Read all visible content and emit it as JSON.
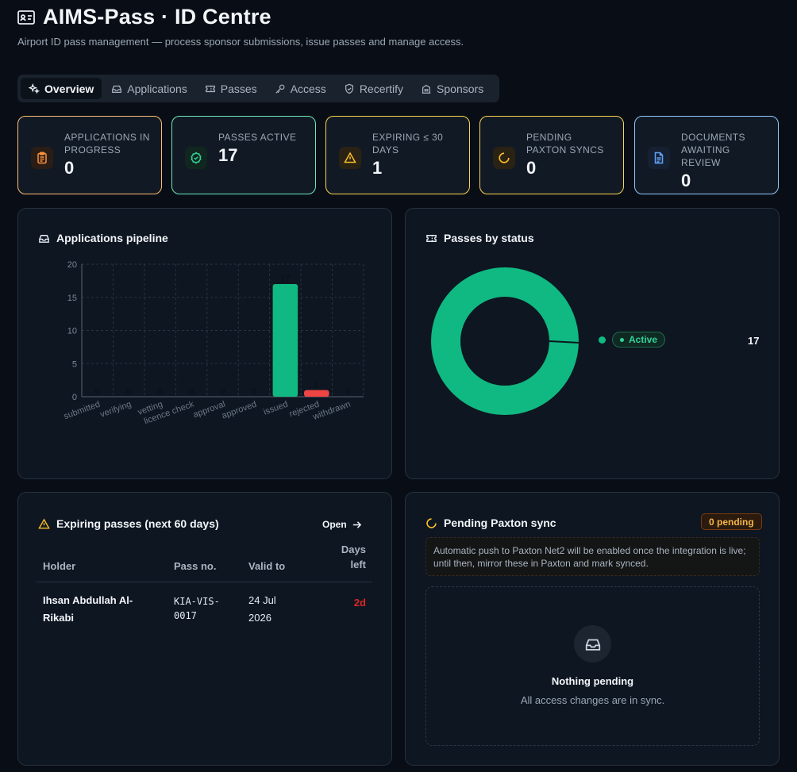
{
  "header": {
    "title": "AIMS-Pass · ID Centre",
    "subtitle": "Airport ID pass management — process sponsor submissions, issue passes and manage access."
  },
  "tabs": [
    {
      "label": "Overview",
      "icon": "sparkles-icon",
      "active": true
    },
    {
      "label": "Applications",
      "icon": "inbox-icon"
    },
    {
      "label": "Passes",
      "icon": "ticket-icon"
    },
    {
      "label": "Access",
      "icon": "key-icon"
    },
    {
      "label": "Recertify",
      "icon": "shield-check-icon"
    },
    {
      "label": "Sponsors",
      "icon": "building-icon"
    }
  ],
  "kpis": [
    {
      "label": "APPLICATIONS IN PROGRESS",
      "value": "0",
      "icon": "clipboard-icon",
      "color": "#fdba74"
    },
    {
      "label": "PASSES ACTIVE",
      "value": "17",
      "icon": "badge-check-icon",
      "color": "#6ee7b7"
    },
    {
      "label": "EXPIRING ≤ 30 DAYS",
      "value": "1",
      "icon": "warning-icon",
      "color": "#fcd34d"
    },
    {
      "label": "PENDING PAXTON SYNCS",
      "value": "0",
      "icon": "loader-icon",
      "color": "#fcd34d"
    },
    {
      "label": "DOCUMENTS AWAITING REVIEW",
      "value": "0",
      "icon": "file-text-icon",
      "color": "#93c5fd"
    }
  ],
  "pipeline": {
    "title": "Applications pipeline"
  },
  "chart_data": [
    {
      "type": "bar",
      "title": "",
      "categories": [
        "submitted",
        "verifying",
        "vetting",
        "licence check",
        "approval",
        "approved",
        "issued",
        "rejected",
        "withdrawn"
      ],
      "values": [
        0,
        0,
        0,
        0,
        0,
        0,
        17,
        1,
        0
      ],
      "ylim": [
        0,
        20
      ],
      "yticks": [
        0,
        5,
        10,
        15,
        20
      ],
      "grid": true,
      "colors": {
        "issued": "#10b981",
        "rejected": "#ef4444"
      }
    },
    {
      "type": "pie",
      "title": "",
      "categories": [
        "Active"
      ],
      "values": [
        17
      ],
      "colors": [
        "#10b981"
      ]
    }
  ],
  "passes_by_status": {
    "title": "Passes by status",
    "legend_label": "Active",
    "legend_value": "17"
  },
  "expiring": {
    "title": "Expiring passes (next 60 days)",
    "open_label": "Open",
    "columns": [
      "Holder",
      "Pass no.",
      "Valid to",
      "Days left"
    ],
    "rows": [
      {
        "holder": "Ihsan Abdullah Al-Rikabi",
        "pass_no": "KIA-VIS-0017",
        "valid_to": "24 Jul 2026",
        "days_left": "2d"
      }
    ]
  },
  "paxton": {
    "title": "Pending Paxton sync",
    "badge": "0 pending",
    "note": "Automatic push to Paxton Net2 will be enabled once the integration is live; until then, mirror these in Paxton and mark synced.",
    "empty_title": "Nothing pending",
    "empty_sub": "All access changes are in sync."
  }
}
